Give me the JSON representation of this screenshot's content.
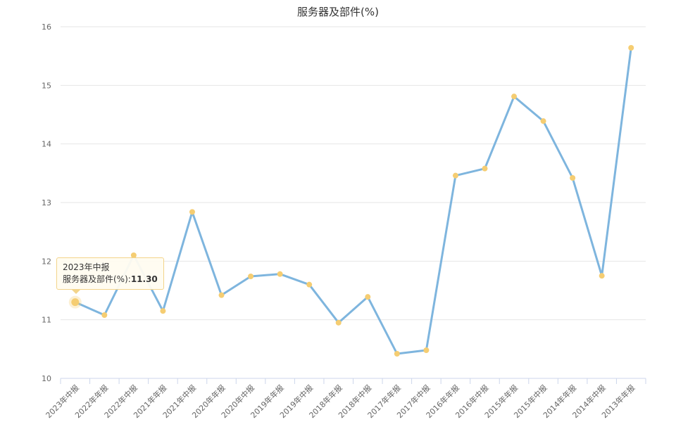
{
  "chart_data": {
    "type": "line",
    "title": "服务器及部件(%)",
    "categories": [
      "2023年中报",
      "2022年年报",
      "2022年中报",
      "2021年年报",
      "2021年中报",
      "2020年年报",
      "2020年中报",
      "2019年年报",
      "2019年中报",
      "2018年年报",
      "2018年中报",
      "2017年年报",
      "2017年中报",
      "2016年年报",
      "2016年中报",
      "2015年年报",
      "2015年中报",
      "2014年年报",
      "2014年中报",
      "2013年年报"
    ],
    "series": [
      {
        "name": "服务器及部件(%)",
        "values": [
          11.3,
          11.08,
          12.1,
          11.15,
          12.84,
          11.42,
          11.74,
          11.78,
          11.6,
          10.95,
          11.39,
          10.42,
          10.48,
          13.46,
          13.58,
          14.81,
          14.39,
          13.42,
          11.75,
          15.64
        ]
      }
    ],
    "ylim": [
      10,
      16
    ],
    "yticks": [
      10,
      11,
      12,
      13,
      14,
      15,
      16
    ],
    "grid": true,
    "colors": {
      "line": "#7eb5de",
      "marker": "#f5cd72",
      "grid": "#e6e6e6"
    },
    "tooltip": {
      "category": "2023年中报",
      "label": "服务器及部件(%)",
      "value": "11.30"
    }
  }
}
